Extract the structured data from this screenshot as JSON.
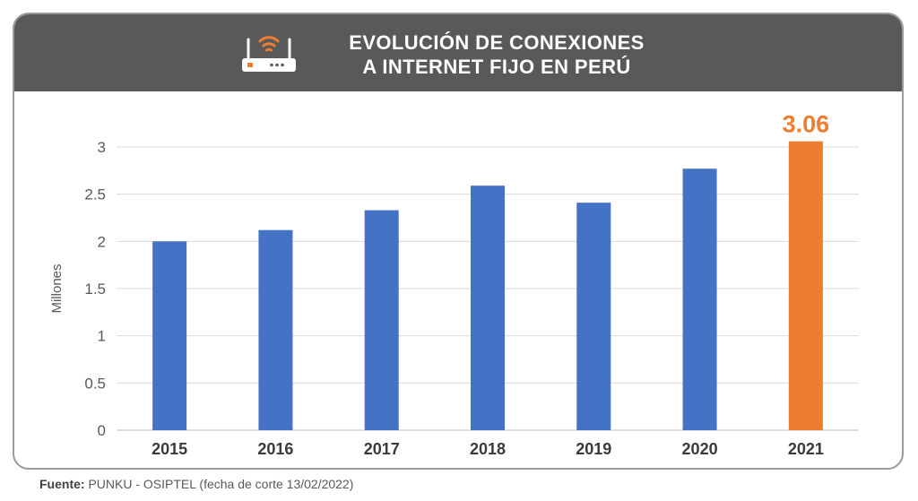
{
  "header": {
    "title_line1": "EVOLUCIÓN DE CONEXIONES",
    "title_line2": "A INTERNET FIJO EN PERÚ",
    "icon": "wifi-router-icon"
  },
  "colors": {
    "header_bg": "#595959",
    "bar": "#4472c4",
    "highlight": "#ed7d31",
    "grid": "#d9d9d9"
  },
  "chart_data": {
    "type": "bar",
    "categories": [
      "2015",
      "2016",
      "2017",
      "2018",
      "2019",
      "2020",
      "2021"
    ],
    "values": [
      2.0,
      2.12,
      2.33,
      2.59,
      2.41,
      2.77,
      3.06
    ],
    "highlight_index": 6,
    "data_labels": {
      "6": "3.06"
    },
    "ylabel": "Millones",
    "ylim": [
      0,
      3
    ],
    "yticks": [
      0,
      0.5,
      1,
      1.5,
      2,
      2.5,
      3
    ],
    "grid": true
  },
  "footer": {
    "source_label": "Fuente:",
    "source_text": " PUNKU - OSIPTEL (fecha de corte 13/02/2022)"
  }
}
